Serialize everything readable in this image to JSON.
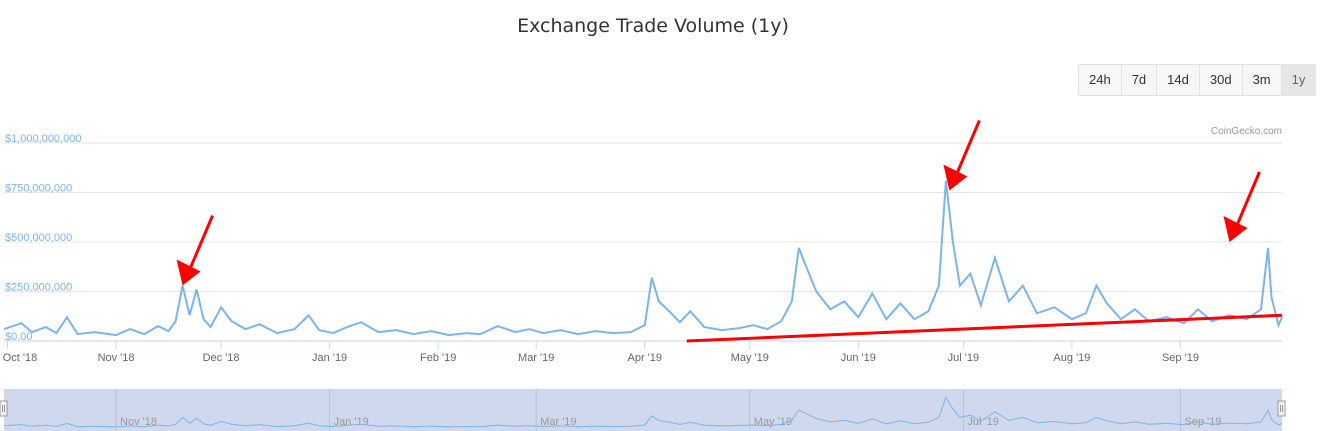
{
  "title": "Exchange Trade Volume (1y)",
  "range_buttons": [
    {
      "label": "24h",
      "active": false
    },
    {
      "label": "7d",
      "active": false
    },
    {
      "label": "14d",
      "active": false
    },
    {
      "label": "30d",
      "active": false
    },
    {
      "label": "3m",
      "active": false
    },
    {
      "label": "1y",
      "active": true
    }
  ],
  "credit": "CoinGecko.com",
  "colors": {
    "series": "#7cb5ec",
    "annotation": "#ff0000",
    "navigator_fill": "#ccd6eb"
  },
  "chart_data": {
    "type": "line",
    "title": "Exchange Trade Volume (1y)",
    "xlabel": "",
    "ylabel": "",
    "ylim": [
      0,
      1000000000
    ],
    "y_ticks": [
      0,
      250000000,
      500000000,
      750000000,
      1000000000
    ],
    "y_tick_labels": [
      "$0.00",
      "$250,000,000",
      "$500,000,000",
      "$750,000,000",
      "$1,000,000,000"
    ],
    "x_range": [
      "2018-09-30",
      "2019-09-30"
    ],
    "x_ticks": [
      "2018-10-01",
      "2018-11-01",
      "2018-12-01",
      "2019-01-01",
      "2019-02-01",
      "2019-03-01",
      "2019-04-01",
      "2019-05-01",
      "2019-06-01",
      "2019-07-01",
      "2019-08-01",
      "2019-09-01"
    ],
    "x_tick_labels": [
      "Oct '18",
      "Nov '18",
      "Dec '18",
      "Jan '19",
      "Feb '19",
      "Mar '19",
      "Apr '19",
      "May '19",
      "Jun '19",
      "Jul '19",
      "Aug '19",
      "Sep '19"
    ],
    "grid": true,
    "series": [
      {
        "name": "",
        "points": [
          [
            "2018-09-30",
            60000000
          ],
          [
            "2018-10-05",
            90000000
          ],
          [
            "2018-10-08",
            45000000
          ],
          [
            "2018-10-12",
            70000000
          ],
          [
            "2018-10-15",
            40000000
          ],
          [
            "2018-10-18",
            120000000
          ],
          [
            "2018-10-21",
            35000000
          ],
          [
            "2018-10-26",
            45000000
          ],
          [
            "2018-11-01",
            30000000
          ],
          [
            "2018-11-05",
            60000000
          ],
          [
            "2018-11-09",
            35000000
          ],
          [
            "2018-11-13",
            75000000
          ],
          [
            "2018-11-16",
            50000000
          ],
          [
            "2018-11-18",
            100000000
          ],
          [
            "2018-11-20",
            280000000
          ],
          [
            "2018-11-22",
            130000000
          ],
          [
            "2018-11-24",
            260000000
          ],
          [
            "2018-11-26",
            110000000
          ],
          [
            "2018-11-28",
            70000000
          ],
          [
            "2018-12-01",
            170000000
          ],
          [
            "2018-12-04",
            100000000
          ],
          [
            "2018-12-08",
            60000000
          ],
          [
            "2018-12-12",
            85000000
          ],
          [
            "2018-12-17",
            40000000
          ],
          [
            "2018-12-22",
            60000000
          ],
          [
            "2018-12-26",
            130000000
          ],
          [
            "2018-12-29",
            55000000
          ],
          [
            "2019-01-02",
            40000000
          ],
          [
            "2019-01-06",
            70000000
          ],
          [
            "2019-01-10",
            95000000
          ],
          [
            "2019-01-15",
            45000000
          ],
          [
            "2019-01-20",
            55000000
          ],
          [
            "2019-01-25",
            35000000
          ],
          [
            "2019-01-30",
            50000000
          ],
          [
            "2019-02-04",
            30000000
          ],
          [
            "2019-02-09",
            40000000
          ],
          [
            "2019-02-13",
            35000000
          ],
          [
            "2019-02-18",
            75000000
          ],
          [
            "2019-02-23",
            45000000
          ],
          [
            "2019-02-27",
            60000000
          ],
          [
            "2019-03-03",
            40000000
          ],
          [
            "2019-03-08",
            55000000
          ],
          [
            "2019-03-13",
            35000000
          ],
          [
            "2019-03-18",
            50000000
          ],
          [
            "2019-03-23",
            40000000
          ],
          [
            "2019-03-28",
            45000000
          ],
          [
            "2019-04-01",
            80000000
          ],
          [
            "2019-04-03",
            320000000
          ],
          [
            "2019-04-05",
            200000000
          ],
          [
            "2019-04-08",
            150000000
          ],
          [
            "2019-04-11",
            95000000
          ],
          [
            "2019-04-14",
            150000000
          ],
          [
            "2019-04-18",
            70000000
          ],
          [
            "2019-04-23",
            55000000
          ],
          [
            "2019-04-28",
            65000000
          ],
          [
            "2019-05-02",
            80000000
          ],
          [
            "2019-05-06",
            60000000
          ],
          [
            "2019-05-10",
            100000000
          ],
          [
            "2019-05-13",
            200000000
          ],
          [
            "2019-05-15",
            470000000
          ],
          [
            "2019-05-17",
            380000000
          ],
          [
            "2019-05-20",
            250000000
          ],
          [
            "2019-05-24",
            160000000
          ],
          [
            "2019-05-28",
            200000000
          ],
          [
            "2019-06-01",
            120000000
          ],
          [
            "2019-06-05",
            240000000
          ],
          [
            "2019-06-09",
            110000000
          ],
          [
            "2019-06-13",
            190000000
          ],
          [
            "2019-06-17",
            110000000
          ],
          [
            "2019-06-21",
            150000000
          ],
          [
            "2019-06-24",
            280000000
          ],
          [
            "2019-06-26",
            810000000
          ],
          [
            "2019-06-28",
            500000000
          ],
          [
            "2019-06-30",
            280000000
          ],
          [
            "2019-07-03",
            340000000
          ],
          [
            "2019-07-06",
            180000000
          ],
          [
            "2019-07-10",
            420000000
          ],
          [
            "2019-07-14",
            200000000
          ],
          [
            "2019-07-18",
            280000000
          ],
          [
            "2019-07-22",
            140000000
          ],
          [
            "2019-07-27",
            170000000
          ],
          [
            "2019-08-01",
            110000000
          ],
          [
            "2019-08-05",
            140000000
          ],
          [
            "2019-08-08",
            280000000
          ],
          [
            "2019-08-11",
            190000000
          ],
          [
            "2019-08-15",
            110000000
          ],
          [
            "2019-08-19",
            160000000
          ],
          [
            "2019-08-23",
            100000000
          ],
          [
            "2019-08-28",
            120000000
          ],
          [
            "2019-09-02",
            90000000
          ],
          [
            "2019-09-06",
            160000000
          ],
          [
            "2019-09-10",
            100000000
          ],
          [
            "2019-09-15",
            130000000
          ],
          [
            "2019-09-20",
            110000000
          ],
          [
            "2019-09-24",
            160000000
          ],
          [
            "2019-09-26",
            470000000
          ],
          [
            "2019-09-27",
            220000000
          ],
          [
            "2019-09-29",
            80000000
          ],
          [
            "2019-09-30",
            120000000
          ]
        ]
      }
    ],
    "annotations": [
      {
        "type": "arrow",
        "color": "#ff0000",
        "target": [
          "2018-11-20",
          280000000
        ]
      },
      {
        "type": "arrow",
        "color": "#ff0000",
        "target": [
          "2019-06-27",
          760000000
        ]
      },
      {
        "type": "arrow",
        "color": "#ff0000",
        "target": [
          "2019-09-15",
          500000000
        ]
      },
      {
        "type": "trend-line",
        "color": "#ff0000",
        "from": [
          "2019-04-13",
          0
        ],
        "to": [
          "2019-09-30",
          130000000
        ]
      }
    ],
    "navigator": {
      "x_tick_labels": [
        "Nov '18",
        "Jan '19",
        "Mar '19",
        "May '19",
        "Jul '19",
        "Sep '19"
      ],
      "x_ticks": [
        "2018-11-01",
        "2019-01-01",
        "2019-03-01",
        "2019-05-01",
        "2019-07-01",
        "2019-09-01"
      ]
    }
  }
}
